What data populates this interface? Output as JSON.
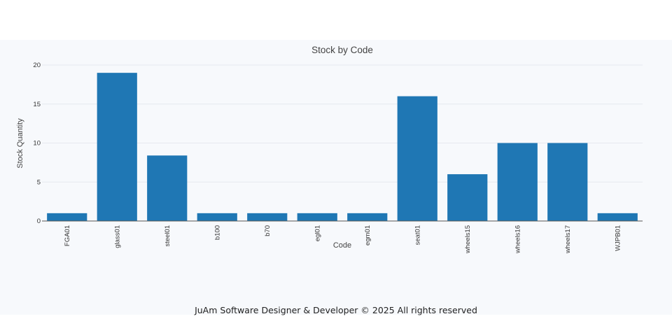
{
  "chart_data": {
    "type": "bar",
    "title": "Stock by Code",
    "xlabel": "Code",
    "ylabel": "Stock Quantity",
    "categories": [
      "FGA01",
      "glass01",
      "steel01",
      "b100",
      "b70",
      "egl01",
      "egm01",
      "seat01",
      "wheels15",
      "wheels16",
      "wheels17",
      "WJPB01"
    ],
    "values": [
      1,
      19,
      8.4,
      1,
      1,
      1,
      1,
      16,
      6,
      10,
      10,
      1
    ],
    "ylim": [
      0,
      20
    ],
    "yticks": [
      0,
      5,
      10,
      15,
      20
    ],
    "grid": true,
    "bar_color": "#1f77b4"
  },
  "footer": {
    "text": "JuAm Software Designer & Developer © 2025 All rights reserved"
  }
}
